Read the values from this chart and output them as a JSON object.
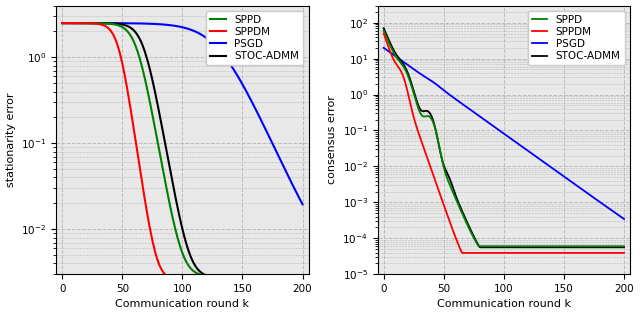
{
  "left_ylabel": "stationarity error",
  "right_ylabel": "consensus error",
  "xlabel": "Communication round k",
  "xlim": [
    -5,
    205
  ],
  "xticks": [
    0,
    50,
    100,
    150,
    200
  ],
  "left_ylim": [
    0.003,
    4.0
  ],
  "right_ylim": [
    1e-05,
    300
  ],
  "legend_labels": [
    "SPPD",
    "SPPDM",
    "PSGD",
    "STOC-ADMM"
  ],
  "colors": [
    "#008000",
    "#ff0000",
    "#0000ff",
    "#000000"
  ],
  "grid_color": "#bbbbbb",
  "background_color": "#e8e8e8"
}
